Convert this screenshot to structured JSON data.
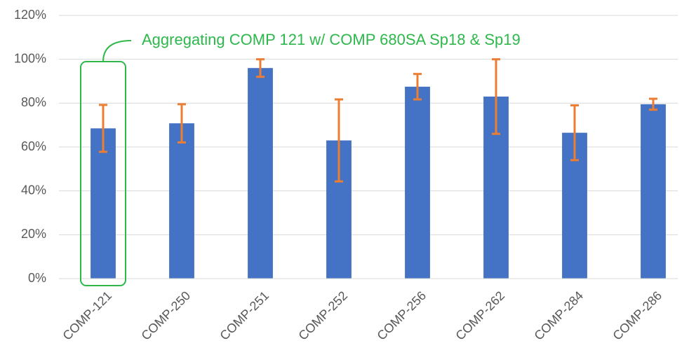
{
  "chart_data": {
    "type": "bar",
    "categories": [
      "COMP-121",
      "COMP-250",
      "COMP-251",
      "COMP-252",
      "COMP-256",
      "COMP-262",
      "COMP-284",
      "COMP-286"
    ],
    "values": [
      68.5,
      70.8,
      96,
      63,
      87.5,
      83,
      66.5,
      79.5
    ],
    "errors": [
      10.7,
      8.7,
      4,
      18.7,
      5.8,
      17,
      12.5,
      2.5
    ],
    "color": "#4472c4",
    "error_color": "#ed7d31",
    "ylim": [
      0,
      120
    ],
    "yticks": [
      {
        "value": 0,
        "label": "0%"
      },
      {
        "value": 20,
        "label": "20%"
      },
      {
        "value": 40,
        "label": "40%"
      },
      {
        "value": 60,
        "label": "60%"
      },
      {
        "value": 80,
        "label": "80%"
      },
      {
        "value": 100,
        "label": "100%"
      },
      {
        "value": 120,
        "label": "120%"
      }
    ],
    "grid": true,
    "annotation": {
      "text": "Aggregating COMP 121 w/ COMP 680SA Sp18 & Sp19",
      "color": "#2eb84b",
      "category_index": 0
    }
  }
}
